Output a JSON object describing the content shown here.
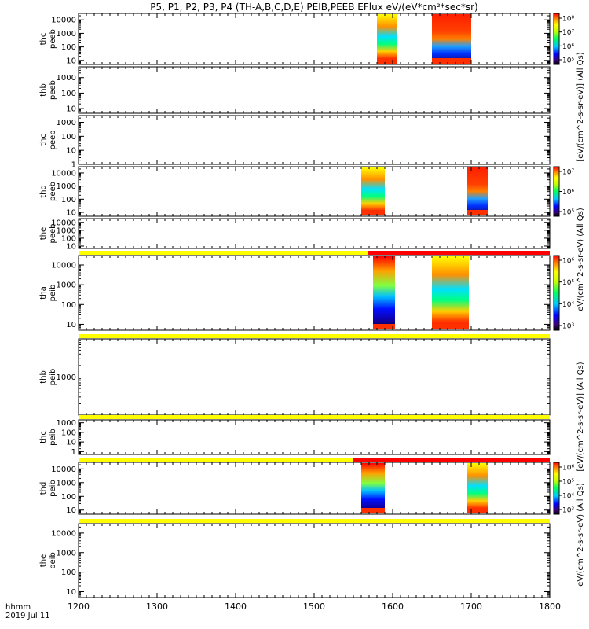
{
  "title": "P5, P1, P2, P3, P4 (TH-A,B,C,D,E) PEIB,PEEB EFlux eV/(eV*cm²*sec*sr)",
  "xaxis": {
    "ticks": [
      "1200",
      "1300",
      "1400",
      "1500",
      "1600",
      "1700",
      "1800"
    ],
    "label_line1": "hhmm",
    "label_line2": "2019 Jul 11"
  },
  "colorbar_units": {
    "peeb_upper": "[eV/(cm^2-s-sr-eV)] (All Qs)",
    "peeb_lower": "eV/(cm^2-s-sr-eV) (All Qs)",
    "peib_upper": "[eV/(cm^2-s-sr-eV)] (All Qs)",
    "peib_lower": "eV/(cm^2-s-sr-eV) (All Qs)"
  },
  "chart_data": {
    "type": "heatmap",
    "x_range": [
      1200,
      1800
    ],
    "y_scale": "log",
    "z_scale": "log",
    "panels": [
      {
        "probe": "thc",
        "product": "peeb",
        "label_line1": "thc",
        "label_line2": "peeb",
        "ylim": [
          5,
          30000
        ],
        "ytick_labels": [
          "10",
          "100",
          "1000",
          "10000"
        ],
        "intervals": [
          [
            1580,
            1605
          ],
          [
            1650,
            1700
          ]
        ],
        "colorbar": {
          "ticks": [
            "10⁸",
            "10⁷",
            "10⁶",
            "10⁵"
          ]
        }
      },
      {
        "probe": "thb",
        "product": "peeb",
        "label_line1": "thb",
        "label_line2": "peeb",
        "ylim": [
          5,
          5000
        ],
        "ytick_labels": [
          "10",
          "100",
          "1000"
        ],
        "intervals": []
      },
      {
        "probe": "thc",
        "product": "peeb",
        "label_line1": "thc",
        "label_line2": "peeb",
        "ylim": [
          1,
          3000
        ],
        "ytick_labels": [
          "1",
          "10",
          "100",
          "1000"
        ],
        "intervals": []
      },
      {
        "probe": "thd",
        "product": "peeb",
        "label_line1": "thd",
        "label_line2": "peeb",
        "ylim": [
          5,
          30000
        ],
        "ytick_labels": [
          "10",
          "100",
          "1000",
          "10000"
        ],
        "intervals": [
          [
            1560,
            1590
          ],
          [
            1695,
            1722
          ]
        ],
        "colorbar": {
          "ticks": [
            "10⁷",
            "10⁶",
            "10⁵"
          ]
        }
      },
      {
        "probe": "the",
        "product": "peeb",
        "label_line1": "the",
        "label_line2": "peeb",
        "ylim": [
          5,
          30000
        ],
        "ytick_labels": [
          "10",
          "100",
          "1000",
          "10000"
        ],
        "intervals": []
      },
      {
        "probe": "tha",
        "product": "peib",
        "label_line1": "tha",
        "label_line2": "peib",
        "ylim": [
          5,
          30000
        ],
        "ytick_labels": [
          "10",
          "100",
          "1000",
          "10000"
        ],
        "intervals": [
          [
            1575,
            1603
          ],
          [
            1650,
            1697
          ]
        ],
        "colorbar": {
          "ticks": [
            "10⁶",
            "10⁵",
            "10⁴",
            "10³"
          ]
        }
      },
      {
        "probe": "thb",
        "product": "peib",
        "label_line1": "thb",
        "label_line2": "peib",
        "ylim": [
          100,
          10000
        ],
        "ytick_labels": [
          "1000"
        ],
        "intervals": []
      },
      {
        "probe": "thc",
        "product": "peib",
        "label_line1": "thc",
        "label_line2": "peib",
        "ylim": [
          0.5,
          2000
        ],
        "ytick_labels": [
          "1",
          "10",
          "100",
          "1000"
        ],
        "intervals": []
      },
      {
        "probe": "thd",
        "product": "peib",
        "label_line1": "thd",
        "label_line2": "peib",
        "ylim": [
          5,
          30000
        ],
        "ytick_labels": [
          "10",
          "100",
          "1000",
          "10000"
        ],
        "intervals": [
          [
            1560,
            1590
          ],
          [
            1695,
            1722
          ]
        ],
        "colorbar": {
          "ticks": [
            "10⁶",
            "10⁵",
            "10⁴",
            "10³"
          ]
        }
      },
      {
        "probe": "the",
        "product": "peib",
        "label_line1": "the",
        "label_line2": "peib",
        "ylim": [
          5,
          30000
        ],
        "ytick_labels": [
          "10",
          "100",
          "1000",
          "10000"
        ],
        "intervals": []
      }
    ],
    "mode_bars": [
      {
        "after_panel": 5,
        "segments": [
          {
            "from": 1200,
            "to": 1568,
            "color": "#ffff00"
          },
          {
            "from": 1568,
            "to": 1800,
            "color": "#ff0000"
          }
        ]
      },
      {
        "after_panel": 6,
        "segments": [
          {
            "from": 1200,
            "to": 1800,
            "color": "#ffff00"
          }
        ]
      },
      {
        "after_panel": 7,
        "segments": [
          {
            "from": 1200,
            "to": 1800,
            "color": "#ffff00"
          }
        ]
      },
      {
        "after_panel": 8,
        "segments": [
          {
            "from": 1200,
            "to": 1550,
            "color": "#ffff00"
          },
          {
            "from": 1550,
            "to": 1800,
            "color": "#ff0000"
          }
        ]
      },
      {
        "after_panel": 9,
        "segments": [
          {
            "from": 1200,
            "to": 1800,
            "color": "#ffff00"
          }
        ]
      }
    ]
  }
}
